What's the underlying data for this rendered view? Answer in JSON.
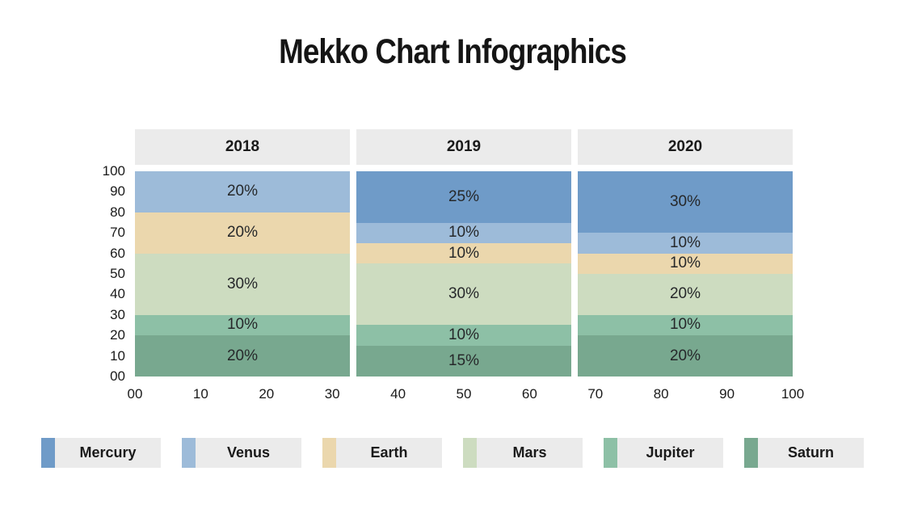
{
  "title": "Mekko Chart Infographics",
  "chart_data": {
    "type": "mekko",
    "title": "Mekko Chart Infographics",
    "xlim": [
      0,
      100
    ],
    "ylim": [
      0,
      100
    ],
    "x_ticks": [
      "00",
      "10",
      "20",
      "30",
      "40",
      "50",
      "60",
      "70",
      "80",
      "90",
      "100"
    ],
    "y_ticks": [
      "100",
      "90",
      "80",
      "70",
      "60",
      "50",
      "40",
      "30",
      "20",
      "10",
      "00"
    ],
    "grid": false,
    "legend_position": "bottom",
    "series": [
      {
        "name": "Mercury",
        "color": "#6f9bc8"
      },
      {
        "name": "Venus",
        "color": "#9dbbd9"
      },
      {
        "name": "Earth",
        "color": "#ebd7ad"
      },
      {
        "name": "Mars",
        "color": "#cddcc0"
      },
      {
        "name": "Jupiter",
        "color": "#8dc0a6"
      },
      {
        "name": "Saturn",
        "color": "#78a88f"
      }
    ],
    "columns": [
      {
        "label": "2018",
        "segments": [
          {
            "name": "Venus",
            "value": 20,
            "label": "20%"
          },
          {
            "name": "Earth",
            "value": 20,
            "label": "20%"
          },
          {
            "name": "Mars",
            "value": 30,
            "label": "30%"
          },
          {
            "name": "Jupiter",
            "value": 10,
            "label": "10%"
          },
          {
            "name": "Saturn",
            "value": 20,
            "label": "20%"
          }
        ]
      },
      {
        "label": "2019",
        "segments": [
          {
            "name": "Mercury",
            "value": 25,
            "label": "25%"
          },
          {
            "name": "Venus",
            "value": 10,
            "label": "10%"
          },
          {
            "name": "Earth",
            "value": 10,
            "label": "10%"
          },
          {
            "name": "Mars",
            "value": 30,
            "label": "30%"
          },
          {
            "name": "Jupiter",
            "value": 10,
            "label": "10%"
          },
          {
            "name": "Saturn",
            "value": 15,
            "label": "15%"
          }
        ]
      },
      {
        "label": "2020",
        "segments": [
          {
            "name": "Mercury",
            "value": 30,
            "label": "30%"
          },
          {
            "name": "Venus",
            "value": 10,
            "label": "10%"
          },
          {
            "name": "Earth",
            "value": 10,
            "label": "10%"
          },
          {
            "name": "Mars",
            "value": 20,
            "label": "20%"
          },
          {
            "name": "Jupiter",
            "value": 10,
            "label": "10%"
          },
          {
            "name": "Saturn",
            "value": 20,
            "label": "20%"
          }
        ]
      }
    ],
    "legend": [
      "Mercury",
      "Venus",
      "Earth",
      "Mars",
      "Jupiter",
      "Saturn"
    ]
  },
  "colors": {
    "header_box": "#ebebeb",
    "legend_box": "#ebebeb",
    "text": "#1a1a1a",
    "background": "#ffffff"
  }
}
